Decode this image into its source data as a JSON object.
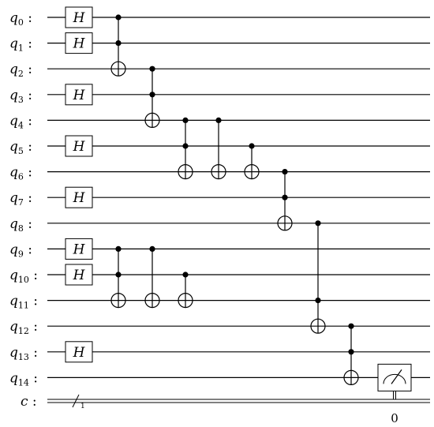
{
  "circuit": {
    "qubits": [
      "q_0",
      "q_1",
      "q_2",
      "q_3",
      "q_4",
      "q_5",
      "q_6",
      "q_7",
      "q_8",
      "q_9",
      "q_10",
      "q_11",
      "q_12",
      "q_13",
      "q_14"
    ],
    "qubit_label_base": "q",
    "qubit_indices": [
      "0",
      "1",
      "2",
      "3",
      "4",
      "5",
      "6",
      "7",
      "8",
      "9",
      "10",
      "11",
      "12",
      "13",
      "14"
    ],
    "label_separator": ":",
    "classical_register": "c",
    "classical_bits": "1",
    "h_gates": [
      0,
      1,
      3,
      5,
      7,
      9,
      10,
      13
    ],
    "h_label": "H",
    "operations": [
      {
        "type": "ccx",
        "controls": [
          0,
          1
        ],
        "target": 2,
        "column": 1
      },
      {
        "type": "ccx",
        "controls": [
          9,
          10
        ],
        "target": 11,
        "column": 1
      },
      {
        "type": "ccx",
        "controls": [
          2,
          3
        ],
        "target": 4,
        "column": 2
      },
      {
        "type": "cx",
        "controls": [
          9
        ],
        "target": 11,
        "column": 2
      },
      {
        "type": "ccx",
        "controls": [
          4,
          5
        ],
        "target": 6,
        "column": 3
      },
      {
        "type": "cx",
        "controls": [
          10
        ],
        "target": 11,
        "column": 3
      },
      {
        "type": "cx",
        "controls": [
          4
        ],
        "target": 6,
        "column": 4
      },
      {
        "type": "cx",
        "controls": [
          5
        ],
        "target": 6,
        "column": 5
      },
      {
        "type": "ccx",
        "controls": [
          6,
          7
        ],
        "target": 8,
        "column": 6
      },
      {
        "type": "ccx",
        "controls": [
          8,
          11
        ],
        "target": 12,
        "column": 7
      },
      {
        "type": "ccx",
        "controls": [
          12,
          13
        ],
        "target": 14,
        "column": 8
      }
    ],
    "measurement": {
      "qubit": 14,
      "bit_label": "0",
      "column": 9
    }
  }
}
